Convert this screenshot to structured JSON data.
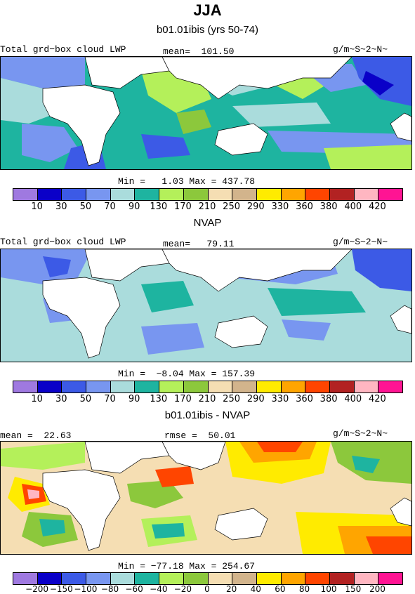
{
  "figure": {
    "title": "JJA",
    "panels": [
      {
        "subtitle": "b01.01ibis (yrs 50-74)",
        "left_label": "Total grd−box cloud LWP",
        "center_label": "mean=  101.50",
        "right_label": "g/m~S~2~N~",
        "stats": "Min =   1.03 Max = 437.78"
      },
      {
        "subtitle": "NVAP",
        "left_label": "Total grd−box cloud LWP",
        "center_label": "mean=   79.11",
        "right_label": "g/m~S~2~N~",
        "stats": "Min =  −8.04 Max = 157.39"
      },
      {
        "subtitle": "b01.01ibis - NVAP",
        "left_label": "mean =  22.63",
        "center_label": "rmse =  50.01",
        "right_label": "g/m~S~2~N~",
        "stats": "Min = −77.18 Max = 254.67"
      }
    ]
  },
  "colorbars": {
    "colors": [
      "#9f79e0",
      "#0a00c8",
      "#3c5ae6",
      "#7896f0",
      "#aadcdc",
      "#1eb4a0",
      "#b4f05a",
      "#8cc83c",
      "#f5deb3",
      "#d2b48c",
      "#ffeb00",
      "#ffa500",
      "#ff4500",
      "#b22222",
      "#ffb6c1",
      "#ff1493"
    ],
    "lwp_labels": [
      "10",
      "30",
      "50",
      "70",
      "90",
      "130",
      "170",
      "210",
      "250",
      "290",
      "330",
      "360",
      "380",
      "400",
      "420"
    ],
    "diff_labels": [
      "−200",
      "−150",
      "−100",
      "−80",
      "−60",
      "−40",
      "−20",
      "0",
      "20",
      "40",
      "60",
      "80",
      "100",
      "150",
      "200"
    ]
  },
  "chart_data": [
    {
      "type": "heatmap",
      "title": "b01.01ibis (yrs 50-74)",
      "variable": "Total grd-box cloud LWP",
      "units": "g/m~S~2~N~",
      "mean": 101.5,
      "min": 1.03,
      "max": 437.78,
      "contour_levels": [
        10,
        30,
        50,
        70,
        90,
        130,
        170,
        210,
        250,
        290,
        330,
        360,
        380,
        400,
        420
      ]
    },
    {
      "type": "heatmap",
      "title": "NVAP",
      "variable": "Total grd-box cloud LWP",
      "units": "g/m~S~2~N~",
      "mean": 79.11,
      "min": -8.04,
      "max": 157.39,
      "contour_levels": [
        10,
        30,
        50,
        70,
        90,
        130,
        170,
        210,
        250,
        290,
        330,
        360,
        380,
        400,
        420
      ]
    },
    {
      "type": "heatmap",
      "title": "b01.01ibis - NVAP",
      "units": "g/m~S~2~N~",
      "mean": 22.63,
      "rmse": 50.01,
      "min": -77.18,
      "max": 254.67,
      "contour_levels": [
        -200,
        -150,
        -100,
        -80,
        -60,
        -40,
        -20,
        0,
        20,
        40,
        60,
        80,
        100,
        150,
        200
      ]
    }
  ]
}
